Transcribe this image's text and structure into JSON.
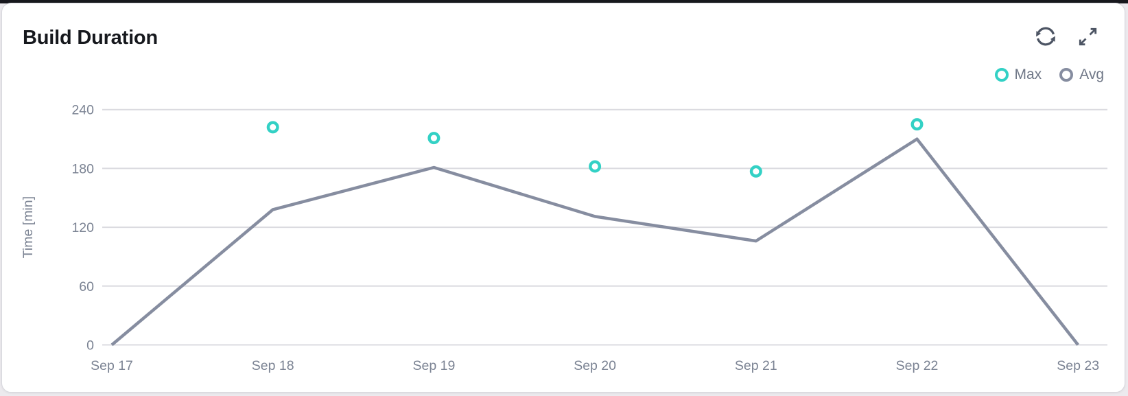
{
  "page": {
    "background": "#eceaee",
    "top_strip_color": "#17181d"
  },
  "card": {
    "title": "Build Duration",
    "background": "#ffffff",
    "border_color": "#d8d8de"
  },
  "toolbar": {
    "icon_color": "#4d5564",
    "buttons": [
      {
        "name": "refresh",
        "icon": "refresh-icon"
      },
      {
        "name": "expand",
        "icon": "expand-arrows-icon"
      }
    ]
  },
  "legend": [
    {
      "label": "Max",
      "color": "#33d1c5"
    },
    {
      "label": "Avg",
      "color": "#868da0"
    }
  ],
  "chart_data": {
    "type": "line",
    "title": "Build Duration",
    "x_categories": [
      "Sep 17",
      "Sep 18",
      "Sep 19",
      "Sep 20",
      "Sep 21",
      "Sep 22",
      "Sep 23"
    ],
    "xlabel": "",
    "ylabel": "Time [min]",
    "y_ticks": [
      0,
      60,
      120,
      180,
      240
    ],
    "ylim": [
      0,
      264
    ],
    "grid": "horizontal-only",
    "legend_position": "top-right",
    "series": [
      {
        "name": "Avg",
        "type": "line",
        "color": "#868da0",
        "values": [
          0,
          138,
          181,
          131,
          106,
          210,
          0
        ]
      },
      {
        "name": "Max",
        "type": "scatter",
        "color": "#33d1c5",
        "values": [
          null,
          222,
          211,
          182,
          177,
          225,
          null
        ]
      }
    ],
    "axis_text_color": "#7b8393",
    "grid_color": "#dbdbe0"
  }
}
